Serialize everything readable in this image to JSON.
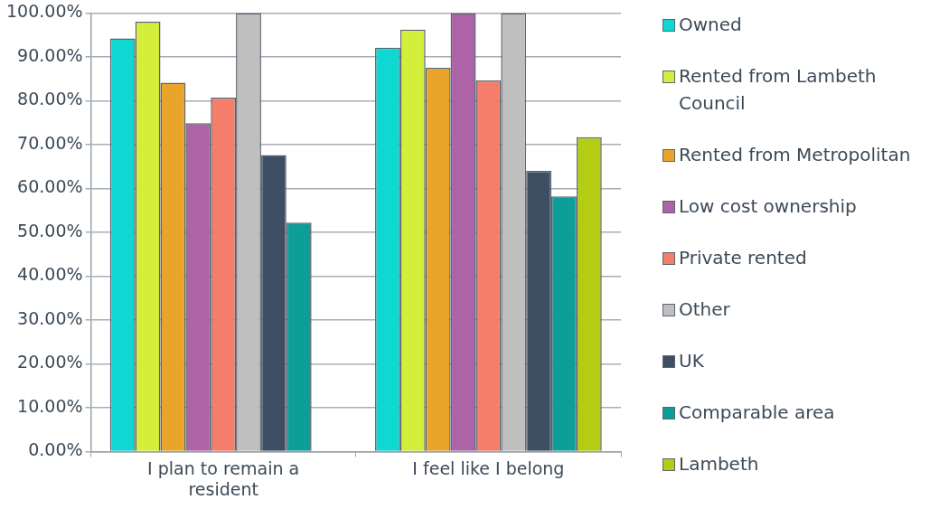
{
  "chart_data": {
    "type": "bar",
    "categories": [
      "I plan to remain a resident",
      "I feel like I belong"
    ],
    "series": [
      {
        "name": "Owned",
        "color": "#0fd8d2",
        "values": [
          94.2,
          92.1
        ]
      },
      {
        "name": "Rented from Lambeth Council",
        "color": "#d4ee3c",
        "values": [
          98.0,
          96.2
        ]
      },
      {
        "name": "Rented from Metropolitan",
        "color": "#e9a42a",
        "values": [
          84.1,
          87.5
        ]
      },
      {
        "name": "Low cost ownership",
        "color": "#ad63a5",
        "values": [
          74.9,
          100
        ]
      },
      {
        "name": "Private rented",
        "color": "#f47e6a",
        "values": [
          80.7,
          84.6
        ]
      },
      {
        "name": "Other",
        "color": "#bfbfbf",
        "values": [
          100,
          100
        ]
      },
      {
        "name": "UK",
        "color": "#3e4f63",
        "values": [
          67.6,
          64.0
        ]
      },
      {
        "name": "Comparable area",
        "color": "#0e9e99",
        "values": [
          52.2,
          58.2
        ]
      },
      {
        "name": "Lambeth",
        "color": "#b4cc12",
        "values": [
          null,
          71.7
        ]
      }
    ],
    "ylim": [
      0,
      100
    ],
    "yticks": [
      {
        "value": 0,
        "label": "0.00%"
      },
      {
        "value": 10,
        "label": "10.00%"
      },
      {
        "value": 20,
        "label": "20.00%"
      },
      {
        "value": 30,
        "label": "30.00%"
      },
      {
        "value": 40,
        "label": "40.00%"
      },
      {
        "value": 50,
        "label": "50.00%"
      },
      {
        "value": 60,
        "label": "60.00%"
      },
      {
        "value": 70,
        "label": "70.00%"
      },
      {
        "value": 80,
        "label": "80.00%"
      },
      {
        "value": 90,
        "label": "90.00%"
      },
      {
        "value": 100,
        "label": "100.00%"
      }
    ],
    "grid": "y",
    "legend": "right"
  }
}
